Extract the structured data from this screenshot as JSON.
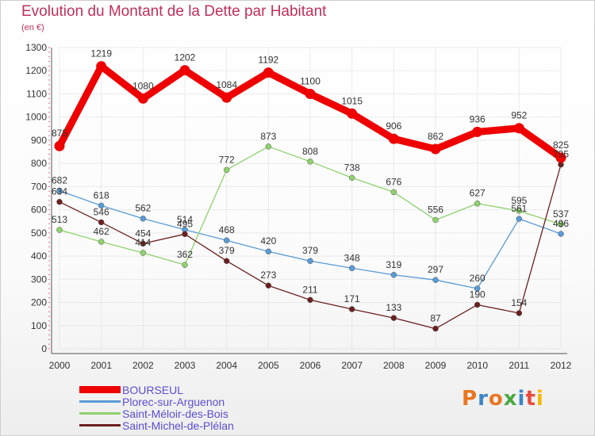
{
  "title": "Evolution du Montant de la Dette par Habitant",
  "subtitle": "(en €)",
  "logo": {
    "text": "Proxiti",
    "colors": [
      "#e87722",
      "#3a86c8",
      "#e87722",
      "#49a942",
      "#3a86c8",
      "#e84c3d",
      "#f2b705"
    ]
  },
  "chart_data": {
    "type": "line",
    "title": "Evolution du Montant de la Dette par Habitant",
    "subtitle": "(en €)",
    "ylim": [
      0,
      1300
    ],
    "yticks": [
      0,
      100,
      200,
      300,
      400,
      500,
      600,
      700,
      800,
      900,
      1000,
      1100,
      1200,
      1300
    ],
    "grid": true,
    "legend_position": "bottom-left",
    "x": [
      "2000",
      "2001",
      "2002",
      "2003",
      "2004",
      "2005",
      "2006",
      "2007",
      "2008",
      "2009",
      "2010",
      "2011",
      "2012"
    ],
    "series": [
      {
        "name": "BOURSEUL",
        "color": "#ee0000",
        "width": 9,
        "values": [
          875,
          1219,
          1080,
          1202,
          1084,
          1192,
          1100,
          1015,
          906,
          862,
          936,
          952,
          825
        ],
        "labels": [
          "875",
          "1219",
          "1080",
          "1202",
          "1084",
          "1192",
          "1100",
          "1015",
          "906",
          "862",
          "936",
          "952",
          "825"
        ]
      },
      {
        "name": "Plorec-sur-Arguenon",
        "color": "#5b9bd5",
        "width": 1.3,
        "values": [
          682,
          618,
          562,
          514,
          468,
          420,
          379,
          348,
          319,
          297,
          260,
          561,
          496
        ],
        "labels": [
          "682",
          "618",
          "562",
          "514",
          "468",
          "420",
          "379",
          "348",
          "319",
          "297",
          "260",
          "561",
          "496"
        ]
      },
      {
        "name": "Saint-Méloir-des-Bois",
        "color": "#8fd16e",
        "width": 1.3,
        "values": [
          513,
          462,
          414,
          362,
          772,
          873,
          808,
          738,
          676,
          556,
          627,
          595,
          537
        ],
        "labels": [
          "513",
          "462",
          "414",
          "362",
          "772",
          "873",
          "808",
          "738",
          "676",
          "556",
          "627",
          "595",
          "537"
        ]
      },
      {
        "name": "Saint-Michel-de-Plélan",
        "color": "#6b2020",
        "width": 1.3,
        "values": [
          634,
          546,
          454,
          495,
          379,
          273,
          211,
          171,
          133,
          87,
          190,
          154,
          795
        ],
        "labels": [
          "634",
          "546",
          "454",
          "495",
          "379",
          "273",
          "211",
          "171",
          "133",
          "87",
          "190",
          "154",
          "795"
        ]
      }
    ]
  }
}
